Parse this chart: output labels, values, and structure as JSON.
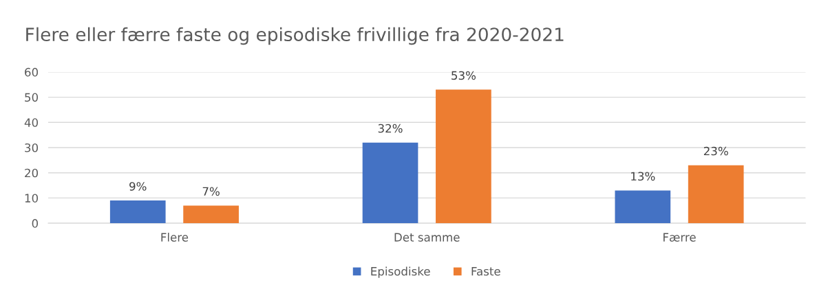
{
  "chart_data": {
    "type": "bar",
    "title": "Flere eller færre faste og episodiske frivillige fra 2020-2021",
    "categories": [
      "Flere",
      "Det samme",
      "Færre"
    ],
    "series": [
      {
        "name": "Episodiske",
        "color": "#4472c4",
        "values": [
          9,
          32,
          13
        ],
        "value_labels": [
          "9%",
          "32%",
          "13%"
        ]
      },
      {
        "name": "Faste",
        "color": "#ed7d31",
        "values": [
          7,
          53,
          23
        ],
        "value_labels": [
          "7%",
          "53%",
          "23%"
        ]
      }
    ],
    "ylim": [
      0,
      60
    ],
    "yticks": [
      0,
      10,
      20,
      30,
      40,
      50,
      60
    ],
    "grid": "y",
    "legend": "bottom"
  }
}
